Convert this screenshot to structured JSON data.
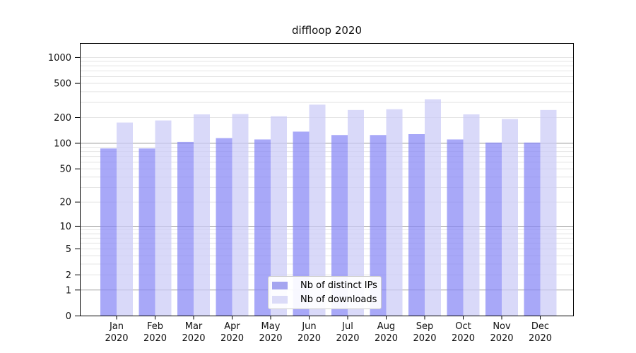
{
  "title": "diffloop 2020",
  "colors": {
    "ips_bar": "rgba(134,134,245,0.72)",
    "downloads_bar": "rgba(202,202,247,0.72)",
    "ips_swatch": "#a5a5f0",
    "downloads_swatch": "#dbdbf8",
    "grid_major": "#a3a3a3",
    "grid_minor": "#e4e4e4",
    "axis": "#000000"
  },
  "legend": {
    "items": [
      {
        "label": "Nb of distinct IPs"
      },
      {
        "label": "Nb of downloads"
      }
    ]
  },
  "chart_data": {
    "type": "bar",
    "title": "diffloop 2020",
    "categories": [
      "Jan 2020",
      "Feb 2020",
      "Mar 2020",
      "Apr 2020",
      "May 2020",
      "Jun 2020",
      "Jul 2020",
      "Aug 2020",
      "Sep 2020",
      "Oct 2020",
      "Nov 2020",
      "Dec 2020"
    ],
    "series": [
      {
        "name": "Nb of distinct IPs",
        "values": [
          87,
          87,
          104,
          115,
          111,
          137,
          125,
          125,
          128,
          111,
          102,
          102
        ]
      },
      {
        "name": "Nb of downloads",
        "values": [
          175,
          185,
          218,
          220,
          207,
          283,
          245,
          250,
          327,
          218,
          192,
          245
        ]
      }
    ],
    "yscale": "log1p",
    "y_ticks": [
      0,
      1,
      2,
      5,
      10,
      20,
      50,
      100,
      200,
      500,
      1000
    ],
    "y_major_gridlines": [
      1,
      10,
      100
    ],
    "ylim": [
      0,
      1450
    ],
    "grid": "horizontal",
    "legend_position": "lower center"
  }
}
